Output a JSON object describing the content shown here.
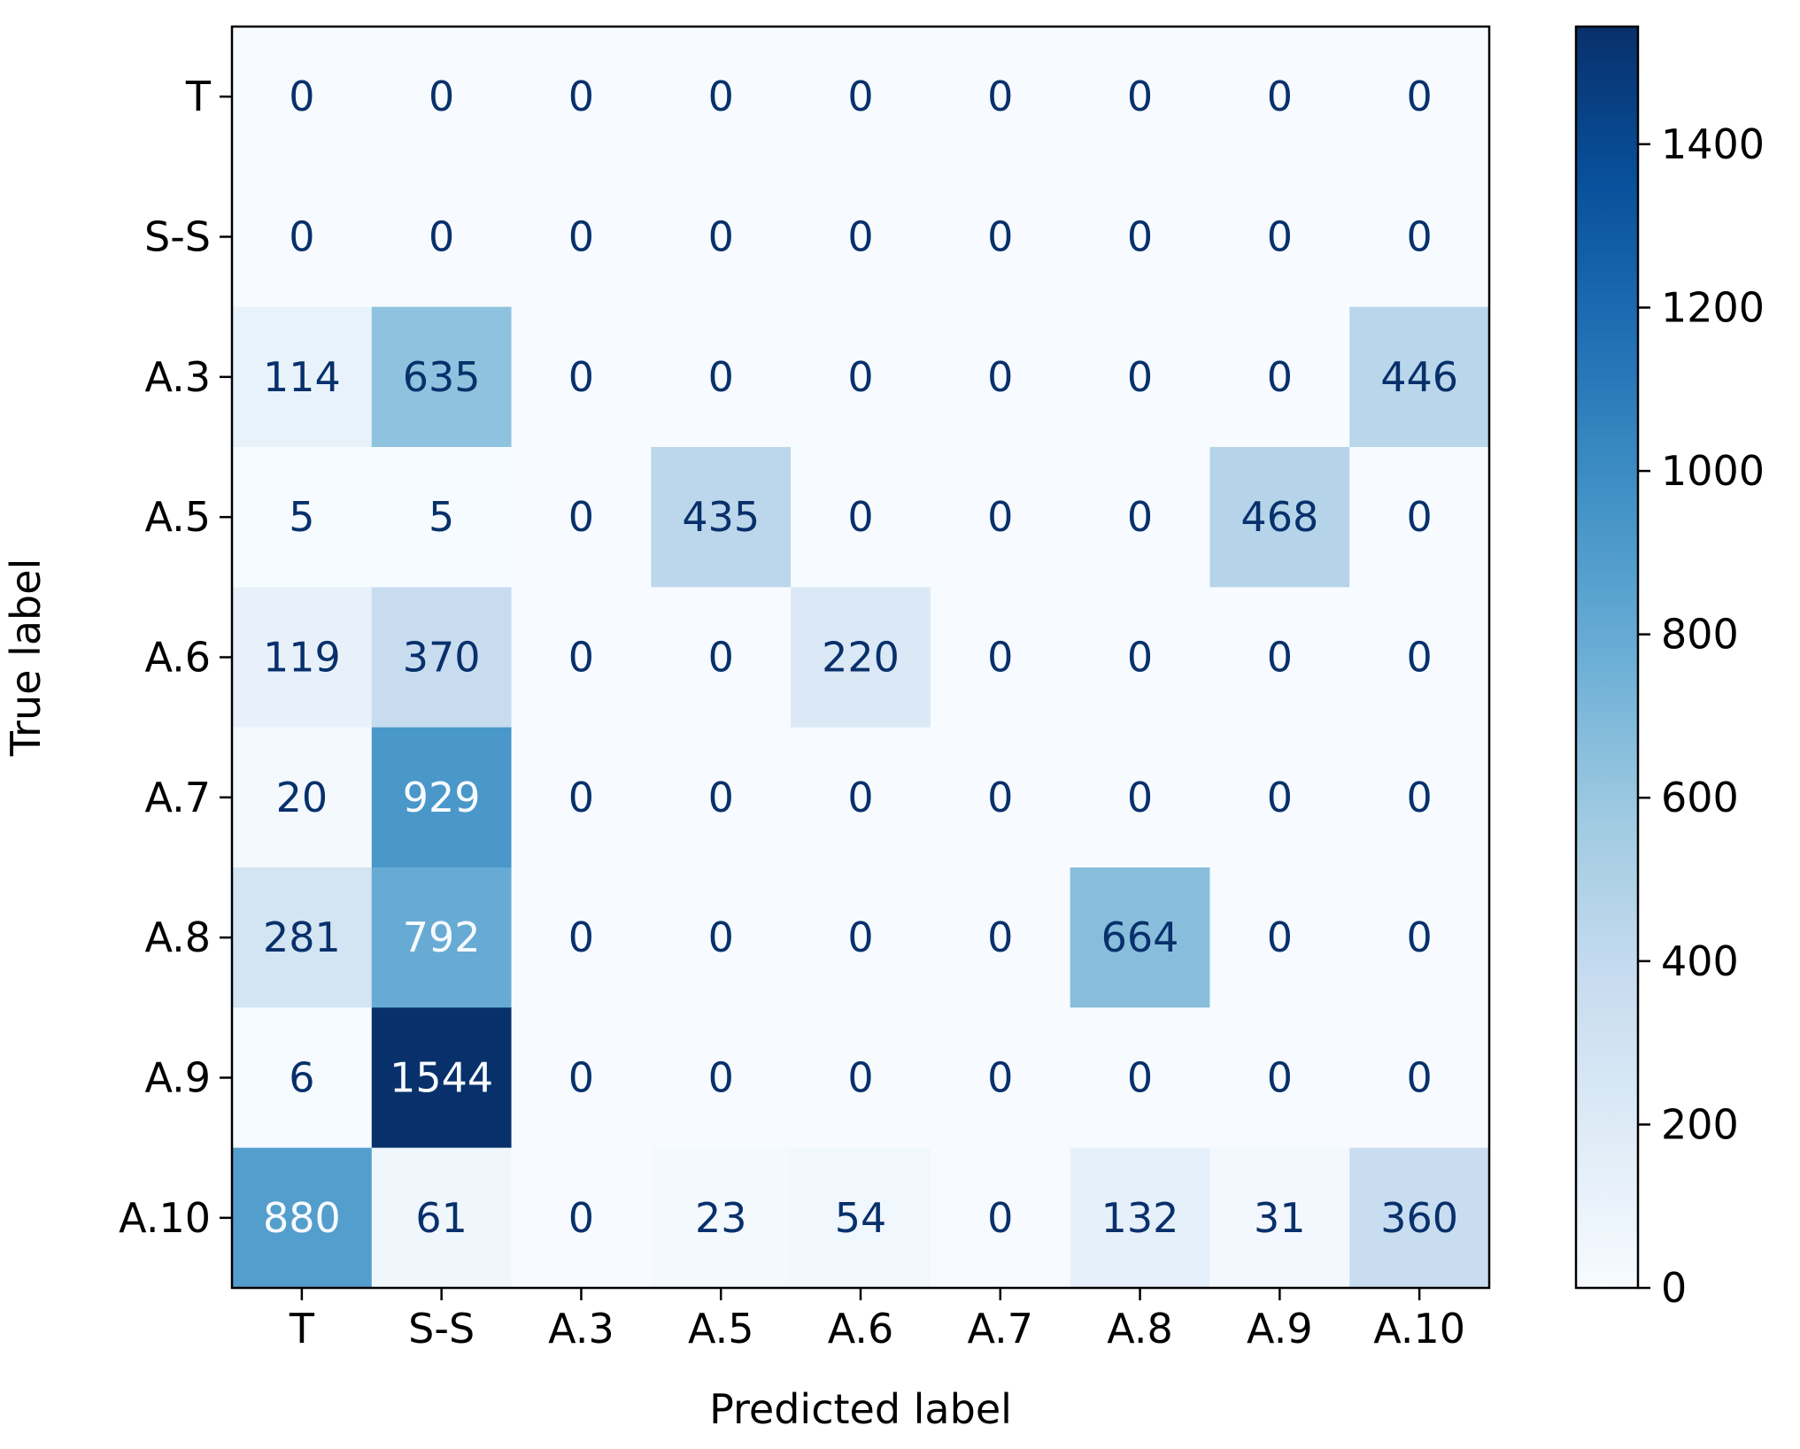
{
  "chart_data": {
    "type": "heatmap",
    "title": "",
    "xlabel": "Predicted label",
    "ylabel": "True label",
    "x_categories": [
      "T",
      "S-S",
      "A.3",
      "A.5",
      "A.6",
      "A.7",
      "A.8",
      "A.9",
      "A.10"
    ],
    "y_categories": [
      "T",
      "S-S",
      "A.3",
      "A.5",
      "A.6",
      "A.7",
      "A.8",
      "A.9",
      "A.10"
    ],
    "matrix": [
      [
        0,
        0,
        0,
        0,
        0,
        0,
        0,
        0,
        0
      ],
      [
        0,
        0,
        0,
        0,
        0,
        0,
        0,
        0,
        0
      ],
      [
        114,
        635,
        0,
        0,
        0,
        0,
        0,
        0,
        446
      ],
      [
        5,
        5,
        0,
        435,
        0,
        0,
        0,
        468,
        0
      ],
      [
        119,
        370,
        0,
        0,
        220,
        0,
        0,
        0,
        0
      ],
      [
        20,
        929,
        0,
        0,
        0,
        0,
        0,
        0,
        0
      ],
      [
        281,
        792,
        0,
        0,
        0,
        0,
        664,
        0,
        0
      ],
      [
        6,
        1544,
        0,
        0,
        0,
        0,
        0,
        0,
        0
      ],
      [
        880,
        61,
        0,
        23,
        54,
        0,
        132,
        31,
        360
      ]
    ],
    "colormap": "Blues",
    "colorbar": {
      "min": 0,
      "max": 1544,
      "ticks": [
        0,
        200,
        400,
        600,
        800,
        1000,
        1200,
        1400
      ]
    },
    "text_colors": {
      "dark": "#08306b",
      "light": "#f7fbff"
    },
    "grid": false
  }
}
